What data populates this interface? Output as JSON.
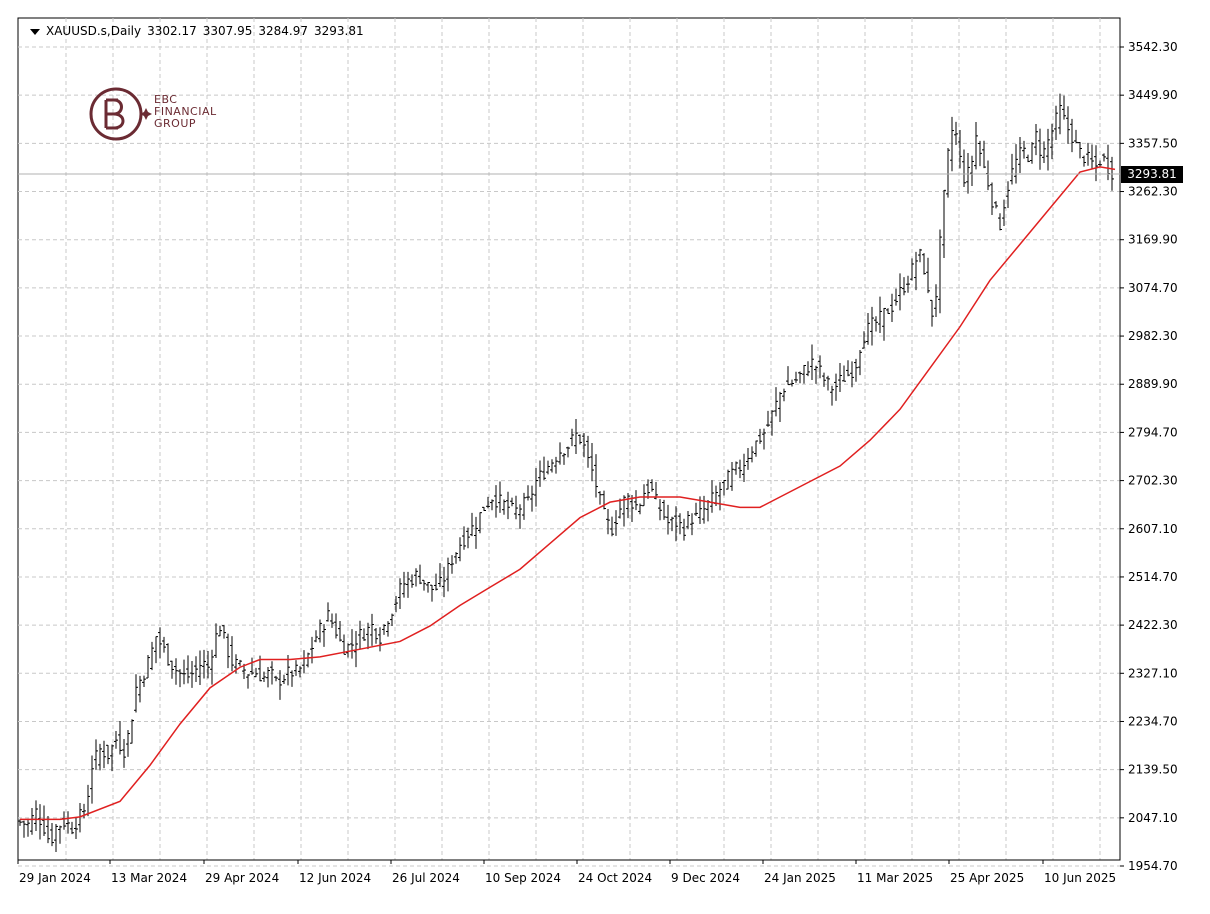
{
  "header": {
    "symbol": "XAUUSD.s,Daily",
    "open": "3302.17",
    "high": "3307.95",
    "low": "3284.97",
    "close": "3293.81"
  },
  "logo": {
    "line1": "EBC",
    "line2": "FINANCIAL",
    "line3": "GROUP"
  },
  "current_price_label": "3293.81",
  "colors": {
    "bars": "#000000",
    "moving_average": "#e02020",
    "grid": "#c8c8c8",
    "logo": "#6b2b33"
  },
  "chart_data": {
    "type": "ohlc",
    "title": "XAUUSD.s,Daily",
    "ylim": [
      1954.7,
      3542.3
    ],
    "y_ticks": [
      "3542.30",
      "3449.90",
      "3357.50",
      "3262.30",
      "3169.90",
      "3074.70",
      "2982.30",
      "2889.90",
      "2794.70",
      "2702.30",
      "2607.10",
      "2514.70",
      "2422.30",
      "2327.10",
      "2234.70",
      "2139.50",
      "2047.10",
      "1954.70"
    ],
    "x_ticks": [
      "29 Jan 2024",
      "13 Mar 2024",
      "29 Apr 2024",
      "12 Jun 2024",
      "26 Jul 2024",
      "10 Sep 2024",
      "24 Oct 2024",
      "9 Dec 2024",
      "24 Jan 2025",
      "11 Mar 2025",
      "25 Apr 2025",
      "10 Jun 2025"
    ],
    "grid": true,
    "price_points": [
      [
        0,
        2040
      ],
      [
        8,
        2035
      ],
      [
        16,
        2060
      ],
      [
        24,
        2030
      ],
      [
        30,
        2000
      ],
      [
        36,
        2030
      ],
      [
        44,
        2040
      ],
      [
        52,
        2030
      ],
      [
        60,
        2050
      ],
      [
        66,
        2070
      ],
      [
        72,
        2150
      ],
      [
        80,
        2180
      ],
      [
        88,
        2170
      ],
      [
        96,
        2200
      ],
      [
        104,
        2180
      ],
      [
        110,
        2220
      ],
      [
        116,
        2300
      ],
      [
        124,
        2330
      ],
      [
        130,
        2360
      ],
      [
        136,
        2400
      ],
      [
        142,
        2380
      ],
      [
        150,
        2350
      ],
      [
        158,
        2330
      ],
      [
        166,
        2320
      ],
      [
        174,
        2330
      ],
      [
        182,
        2350
      ],
      [
        188,
        2340
      ],
      [
        194,
        2390
      ],
      [
        200,
        2420
      ],
      [
        206,
        2380
      ],
      [
        212,
        2350
      ],
      [
        220,
        2340
      ],
      [
        228,
        2330
      ],
      [
        236,
        2330
      ],
      [
        244,
        2320
      ],
      [
        250,
        2330
      ],
      [
        256,
        2310
      ],
      [
        262,
        2320
      ],
      [
        270,
        2330
      ],
      [
        276,
        2330
      ],
      [
        282,
        2340
      ],
      [
        290,
        2370
      ],
      [
        296,
        2400
      ],
      [
        302,
        2420
      ],
      [
        308,
        2440
      ],
      [
        314,
        2420
      ],
      [
        322,
        2380
      ],
      [
        330,
        2380
      ],
      [
        338,
        2400
      ],
      [
        346,
        2410
      ],
      [
        352,
        2420
      ],
      [
        360,
        2400
      ],
      [
        366,
        2430
      ],
      [
        374,
        2460
      ],
      [
        382,
        2500
      ],
      [
        390,
        2510
      ],
      [
        398,
        2520
      ],
      [
        406,
        2500
      ],
      [
        414,
        2490
      ],
      [
        420,
        2500
      ],
      [
        426,
        2520
      ],
      [
        432,
        2550
      ],
      [
        440,
        2580
      ],
      [
        448,
        2600
      ],
      [
        456,
        2620
      ],
      [
        464,
        2650
      ],
      [
        472,
        2670
      ],
      [
        480,
        2660
      ],
      [
        488,
        2650
      ],
      [
        494,
        2640
      ],
      [
        500,
        2650
      ],
      [
        508,
        2660
      ],
      [
        516,
        2700
      ],
      [
        524,
        2720
      ],
      [
        532,
        2740
      ],
      [
        540,
        2760
      ],
      [
        548,
        2770
      ],
      [
        556,
        2790
      ],
      [
        562,
        2780
      ],
      [
        568,
        2740
      ],
      [
        574,
        2710
      ],
      [
        580,
        2660
      ],
      [
        586,
        2620
      ],
      [
        592,
        2610
      ],
      [
        598,
        2640
      ],
      [
        606,
        2670
      ],
      [
        612,
        2660
      ],
      [
        618,
        2650
      ],
      [
        624,
        2680
      ],
      [
        630,
        2690
      ],
      [
        636,
        2660
      ],
      [
        642,
        2640
      ],
      [
        648,
        2620
      ],
      [
        656,
        2620
      ],
      [
        664,
        2610
      ],
      [
        670,
        2630
      ],
      [
        676,
        2630
      ],
      [
        682,
        2640
      ],
      [
        690,
        2660
      ],
      [
        698,
        2680
      ],
      [
        706,
        2700
      ],
      [
        714,
        2720
      ],
      [
        722,
        2730
      ],
      [
        730,
        2760
      ],
      [
        738,
        2780
      ],
      [
        746,
        2800
      ],
      [
        754,
        2840
      ],
      [
        762,
        2880
      ],
      [
        770,
        2890
      ],
      [
        778,
        2900
      ],
      [
        786,
        2920
      ],
      [
        792,
        2930
      ],
      [
        798,
        2920
      ],
      [
        806,
        2890
      ],
      [
        814,
        2880
      ],
      [
        822,
        2900
      ],
      [
        830,
        2910
      ],
      [
        836,
        2930
      ],
      [
        842,
        2980
      ],
      [
        850,
        3000
      ],
      [
        858,
        3010
      ],
      [
        866,
        3030
      ],
      [
        872,
        3040
      ],
      [
        878,
        3060
      ],
      [
        884,
        3080
      ],
      [
        890,
        3100
      ],
      [
        896,
        3130
      ],
      [
        902,
        3140
      ],
      [
        908,
        3060
      ],
      [
        914,
        3010
      ],
      [
        918,
        3120
      ],
      [
        922,
        3200
      ],
      [
        926,
        3300
      ],
      [
        930,
        3360
      ],
      [
        934,
        3400
      ],
      [
        938,
        3340
      ],
      [
        944,
        3290
      ],
      [
        950,
        3300
      ],
      [
        956,
        3370
      ],
      [
        962,
        3320
      ],
      [
        968,
        3280
      ],
      [
        974,
        3230
      ],
      [
        980,
        3200
      ],
      [
        986,
        3260
      ],
      [
        992,
        3300
      ],
      [
        998,
        3330
      ],
      [
        1004,
        3340
      ],
      [
        1010,
        3330
      ],
      [
        1016,
        3370
      ],
      [
        1022,
        3330
      ],
      [
        1028,
        3360
      ],
      [
        1034,
        3390
      ],
      [
        1040,
        3420
      ],
      [
        1046,
        3390
      ],
      [
        1052,
        3370
      ],
      [
        1058,
        3340
      ],
      [
        1064,
        3330
      ],
      [
        1070,
        3320
      ],
      [
        1076,
        3310
      ],
      [
        1082,
        3330
      ],
      [
        1088,
        3310
      ],
      [
        1095,
        3294
      ]
    ],
    "moving_average_points": [
      [
        0,
        2045
      ],
      [
        40,
        2045
      ],
      [
        60,
        2050
      ],
      [
        100,
        2080
      ],
      [
        130,
        2150
      ],
      [
        160,
        2230
      ],
      [
        190,
        2300
      ],
      [
        220,
        2340
      ],
      [
        240,
        2355
      ],
      [
        270,
        2355
      ],
      [
        300,
        2360
      ],
      [
        340,
        2375
      ],
      [
        380,
        2390
      ],
      [
        410,
        2420
      ],
      [
        440,
        2460
      ],
      [
        470,
        2495
      ],
      [
        500,
        2530
      ],
      [
        530,
        2580
      ],
      [
        560,
        2630
      ],
      [
        590,
        2660
      ],
      [
        620,
        2670
      ],
      [
        660,
        2670
      ],
      [
        690,
        2660
      ],
      [
        720,
        2650
      ],
      [
        740,
        2650
      ],
      [
        760,
        2670
      ],
      [
        790,
        2700
      ],
      [
        820,
        2730
      ],
      [
        850,
        2780
      ],
      [
        880,
        2840
      ],
      [
        910,
        2920
      ],
      [
        940,
        3000
      ],
      [
        970,
        3090
      ],
      [
        1000,
        3160
      ],
      [
        1030,
        3230
      ],
      [
        1060,
        3300
      ],
      [
        1080,
        3310
      ],
      [
        1095,
        3305
      ]
    ]
  }
}
